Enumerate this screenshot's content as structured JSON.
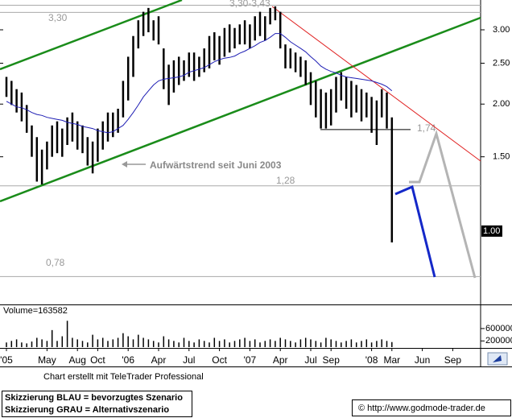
{
  "chart_data": {
    "type": "range",
    "log_scale": true,
    "categories": [
      "'05",
      null,
      null,
      null,
      null,
      null,
      null,
      null,
      "May",
      null,
      null,
      null,
      null,
      null,
      "Aug",
      null,
      null,
      null,
      "Oct",
      null,
      null,
      null,
      null,
      null,
      "'06",
      null,
      null,
      null,
      null,
      null,
      "Apr",
      null,
      null,
      null,
      null,
      null,
      "Jul",
      null,
      null,
      null,
      null,
      null,
      "Oct",
      null,
      null,
      null,
      null,
      null,
      "'07",
      null,
      null,
      null,
      null,
      null,
      "Apr",
      null,
      null,
      null,
      null,
      null,
      "Jul",
      null,
      null,
      null,
      "Sep",
      null,
      null,
      null,
      null,
      null,
      null,
      null,
      "'08",
      null,
      null,
      null,
      "Mar",
      null,
      null,
      null,
      null,
      null,
      "Jun",
      null,
      null,
      null,
      null,
      null,
      "Sep",
      null,
      null,
      null,
      null,
      null
    ],
    "high": [
      2.32,
      2.27,
      2.17,
      2.13,
      1.99,
      1.78,
      1.67,
      1.56,
      1.63,
      1.78,
      1.82,
      1.75,
      1.86,
      1.91,
      1.82,
      1.78,
      1.67,
      1.63,
      1.75,
      1.82,
      1.91,
      1.91,
      1.95,
      2.27,
      2.59,
      2.9,
      3.16,
      3.31,
      3.38,
      3.16,
      3.23,
      2.71,
      2.48,
      2.54,
      2.59,
      2.54,
      2.65,
      2.65,
      2.59,
      2.71,
      2.9,
      2.96,
      2.9,
      3.03,
      3.09,
      3.03,
      3.09,
      3.16,
      3.09,
      3.23,
      3.31,
      3.23,
      3.38,
      3.41,
      3.31,
      2.77,
      2.71,
      2.65,
      2.59,
      2.54,
      2.38,
      2.27,
      2.17,
      2.13,
      2.17,
      2.32,
      2.38,
      2.32,
      2.27,
      2.22,
      2.17,
      2.13,
      2.08,
      2.04,
      2.17,
      2.13,
      1.86,
      null,
      null,
      null,
      null,
      null,
      null,
      null,
      null,
      null,
      null,
      null,
      null,
      null,
      null,
      null,
      null,
      null
    ],
    "low": [
      2.08,
      1.99,
      1.91,
      1.82,
      1.71,
      1.5,
      1.31,
      1.29,
      1.4,
      1.5,
      1.53,
      1.5,
      1.6,
      1.63,
      1.56,
      1.53,
      1.43,
      1.37,
      1.46,
      1.56,
      1.63,
      1.67,
      1.71,
      1.86,
      2.04,
      2.32,
      2.71,
      2.9,
      2.96,
      2.83,
      2.77,
      2.17,
      1.99,
      2.13,
      2.22,
      2.27,
      2.32,
      2.27,
      2.32,
      2.38,
      2.43,
      2.54,
      2.48,
      2.59,
      2.65,
      2.71,
      2.77,
      2.77,
      2.71,
      2.83,
      2.9,
      2.83,
      3.09,
      3.16,
      2.71,
      2.43,
      2.43,
      2.38,
      2.32,
      2.22,
      1.99,
      1.86,
      1.75,
      1.75,
      1.78,
      1.91,
      2.04,
      1.95,
      1.86,
      1.91,
      1.82,
      1.86,
      1.71,
      1.6,
      1.86,
      1.75,
      0.94,
      null,
      null,
      null,
      null,
      null,
      null,
      null,
      null,
      null,
      null,
      null,
      null,
      null,
      null,
      null,
      null,
      null
    ],
    "ma": [
      2.03,
      2.0,
      1.97,
      1.96,
      1.94,
      1.91,
      1.89,
      1.88,
      1.86,
      1.85,
      1.84,
      1.83,
      1.81,
      1.8,
      1.79,
      1.77,
      1.76,
      1.75,
      1.73,
      1.72,
      1.71,
      1.72,
      1.75,
      1.78,
      1.84,
      1.91,
      1.99,
      2.08,
      2.15,
      2.22,
      2.27,
      2.29,
      2.3,
      2.31,
      2.32,
      2.34,
      2.38,
      2.4,
      2.42,
      2.44,
      2.48,
      2.52,
      2.55,
      2.57,
      2.58,
      2.6,
      2.64,
      2.67,
      2.71,
      2.75,
      2.8,
      2.83,
      2.88,
      2.94,
      2.94,
      2.88,
      2.81,
      2.76,
      2.71,
      2.66,
      2.59,
      2.53,
      2.46,
      2.42,
      2.39,
      2.37,
      2.34,
      2.32,
      2.31,
      2.3,
      2.29,
      2.28,
      2.27,
      2.25,
      2.23,
      2.2,
      2.15,
      null,
      null,
      null,
      null,
      null,
      null,
      null,
      null,
      null,
      null,
      null,
      null,
      null,
      null,
      null,
      null,
      null
    ],
    "ma_color": "#1f1fb4",
    "bar_color": "#000000",
    "volume": [
      150000,
      200000,
      250000,
      150000,
      120000,
      180000,
      300000,
      250000,
      200000,
      550000,
      200000,
      350000,
      850000,
      300000,
      250000,
      200000,
      150000,
      400000,
      250000,
      300000,
      200000,
      250000,
      300000,
      450000,
      350000,
      250000,
      400000,
      300000,
      250000,
      200000,
      150000,
      350000,
      250000,
      200000,
      150000,
      300000,
      200000,
      150000,
      250000,
      200000,
      150000,
      300000,
      200000,
      250000,
      150000,
      200000,
      250000,
      300000,
      200000,
      250000,
      150000,
      200000,
      250000,
      200000,
      300000,
      250000,
      200000,
      150000,
      250000,
      300000,
      250000,
      200000,
      150000,
      300000,
      250000,
      200000,
      150000,
      200000,
      250000,
      150000,
      200000,
      250000,
      150000,
      200000,
      250000,
      200000,
      163582,
      null,
      null,
      null,
      null,
      null,
      null,
      null,
      null,
      null,
      null,
      null,
      null,
      null,
      null,
      null,
      null,
      null
    ],
    "volume_label": "Volume=163582",
    "ylim": [
      0.67,
      3.53
    ],
    "yticks": [
      {
        "value": 3,
        "label": "3.00"
      },
      {
        "value": 2.5,
        "label": "2.50"
      },
      {
        "value": 2,
        "label": "2.00"
      },
      {
        "value": 1.5,
        "label": "1.50"
      }
    ],
    "last_price": {
      "value": 1,
      "label": "1.00"
    },
    "volume_ylim": [
      0,
      1300000
    ],
    "volume_yticks": [
      600000,
      200000
    ],
    "levels": [
      {
        "value": 3.3,
        "label": "3,30"
      },
      {
        "value": 3.43,
        "label": "3,30-3,43"
      },
      {
        "value": 1.74,
        "label": "1,74"
      },
      {
        "value": 1.28,
        "label": "1,28"
      },
      {
        "value": 0.78,
        "label": "0,78"
      }
    ],
    "annotation": "Aufwärtstrend seit Juni 2003"
  },
  "footer": {
    "credit": "Chart erstellt mit TeleTrader Professional",
    "legend_blue": "Skizzierung BLAU = bevorzugtes Szenario",
    "legend_gray": "Skizzierung GRAU = Alternativszenario",
    "source": "© http://www.godmode-trader.de"
  }
}
